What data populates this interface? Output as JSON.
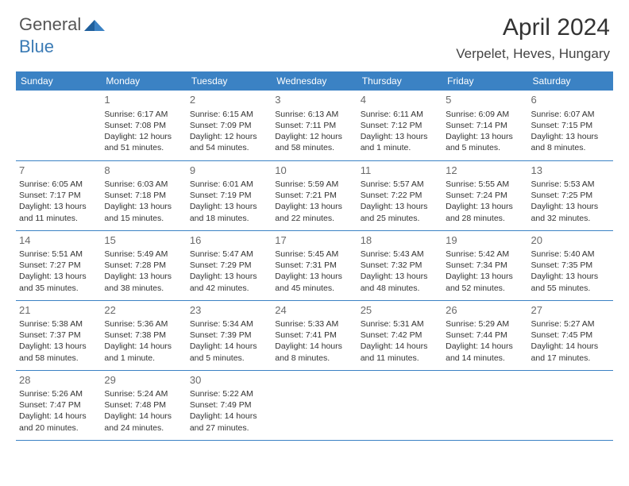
{
  "logo": {
    "word1": "General",
    "word2": "Blue"
  },
  "title": "April 2024",
  "location": "Verpelet, Heves, Hungary",
  "colors": {
    "header_bg": "#3b82c4",
    "header_text": "#ffffff",
    "cell_border": "#3b82c4",
    "daynum": "#6a6a6a",
    "body_text": "#333333",
    "logo_gray": "#555555",
    "logo_blue": "#3b7bb5"
  },
  "weekdays": [
    "Sunday",
    "Monday",
    "Tuesday",
    "Wednesday",
    "Thursday",
    "Friday",
    "Saturday"
  ],
  "rows": [
    [
      null,
      {
        "n": "1",
        "sr": "Sunrise: 6:17 AM",
        "ss": "Sunset: 7:08 PM",
        "dl": "Daylight: 12 hours and 51 minutes."
      },
      {
        "n": "2",
        "sr": "Sunrise: 6:15 AM",
        "ss": "Sunset: 7:09 PM",
        "dl": "Daylight: 12 hours and 54 minutes."
      },
      {
        "n": "3",
        "sr": "Sunrise: 6:13 AM",
        "ss": "Sunset: 7:11 PM",
        "dl": "Daylight: 12 hours and 58 minutes."
      },
      {
        "n": "4",
        "sr": "Sunrise: 6:11 AM",
        "ss": "Sunset: 7:12 PM",
        "dl": "Daylight: 13 hours and 1 minute."
      },
      {
        "n": "5",
        "sr": "Sunrise: 6:09 AM",
        "ss": "Sunset: 7:14 PM",
        "dl": "Daylight: 13 hours and 5 minutes."
      },
      {
        "n": "6",
        "sr": "Sunrise: 6:07 AM",
        "ss": "Sunset: 7:15 PM",
        "dl": "Daylight: 13 hours and 8 minutes."
      }
    ],
    [
      {
        "n": "7",
        "sr": "Sunrise: 6:05 AM",
        "ss": "Sunset: 7:17 PM",
        "dl": "Daylight: 13 hours and 11 minutes."
      },
      {
        "n": "8",
        "sr": "Sunrise: 6:03 AM",
        "ss": "Sunset: 7:18 PM",
        "dl": "Daylight: 13 hours and 15 minutes."
      },
      {
        "n": "9",
        "sr": "Sunrise: 6:01 AM",
        "ss": "Sunset: 7:19 PM",
        "dl": "Daylight: 13 hours and 18 minutes."
      },
      {
        "n": "10",
        "sr": "Sunrise: 5:59 AM",
        "ss": "Sunset: 7:21 PM",
        "dl": "Daylight: 13 hours and 22 minutes."
      },
      {
        "n": "11",
        "sr": "Sunrise: 5:57 AM",
        "ss": "Sunset: 7:22 PM",
        "dl": "Daylight: 13 hours and 25 minutes."
      },
      {
        "n": "12",
        "sr": "Sunrise: 5:55 AM",
        "ss": "Sunset: 7:24 PM",
        "dl": "Daylight: 13 hours and 28 minutes."
      },
      {
        "n": "13",
        "sr": "Sunrise: 5:53 AM",
        "ss": "Sunset: 7:25 PM",
        "dl": "Daylight: 13 hours and 32 minutes."
      }
    ],
    [
      {
        "n": "14",
        "sr": "Sunrise: 5:51 AM",
        "ss": "Sunset: 7:27 PM",
        "dl": "Daylight: 13 hours and 35 minutes."
      },
      {
        "n": "15",
        "sr": "Sunrise: 5:49 AM",
        "ss": "Sunset: 7:28 PM",
        "dl": "Daylight: 13 hours and 38 minutes."
      },
      {
        "n": "16",
        "sr": "Sunrise: 5:47 AM",
        "ss": "Sunset: 7:29 PM",
        "dl": "Daylight: 13 hours and 42 minutes."
      },
      {
        "n": "17",
        "sr": "Sunrise: 5:45 AM",
        "ss": "Sunset: 7:31 PM",
        "dl": "Daylight: 13 hours and 45 minutes."
      },
      {
        "n": "18",
        "sr": "Sunrise: 5:43 AM",
        "ss": "Sunset: 7:32 PM",
        "dl": "Daylight: 13 hours and 48 minutes."
      },
      {
        "n": "19",
        "sr": "Sunrise: 5:42 AM",
        "ss": "Sunset: 7:34 PM",
        "dl": "Daylight: 13 hours and 52 minutes."
      },
      {
        "n": "20",
        "sr": "Sunrise: 5:40 AM",
        "ss": "Sunset: 7:35 PM",
        "dl": "Daylight: 13 hours and 55 minutes."
      }
    ],
    [
      {
        "n": "21",
        "sr": "Sunrise: 5:38 AM",
        "ss": "Sunset: 7:37 PM",
        "dl": "Daylight: 13 hours and 58 minutes."
      },
      {
        "n": "22",
        "sr": "Sunrise: 5:36 AM",
        "ss": "Sunset: 7:38 PM",
        "dl": "Daylight: 14 hours and 1 minute."
      },
      {
        "n": "23",
        "sr": "Sunrise: 5:34 AM",
        "ss": "Sunset: 7:39 PM",
        "dl": "Daylight: 14 hours and 5 minutes."
      },
      {
        "n": "24",
        "sr": "Sunrise: 5:33 AM",
        "ss": "Sunset: 7:41 PM",
        "dl": "Daylight: 14 hours and 8 minutes."
      },
      {
        "n": "25",
        "sr": "Sunrise: 5:31 AM",
        "ss": "Sunset: 7:42 PM",
        "dl": "Daylight: 14 hours and 11 minutes."
      },
      {
        "n": "26",
        "sr": "Sunrise: 5:29 AM",
        "ss": "Sunset: 7:44 PM",
        "dl": "Daylight: 14 hours and 14 minutes."
      },
      {
        "n": "27",
        "sr": "Sunrise: 5:27 AM",
        "ss": "Sunset: 7:45 PM",
        "dl": "Daylight: 14 hours and 17 minutes."
      }
    ],
    [
      {
        "n": "28",
        "sr": "Sunrise: 5:26 AM",
        "ss": "Sunset: 7:47 PM",
        "dl": "Daylight: 14 hours and 20 minutes."
      },
      {
        "n": "29",
        "sr": "Sunrise: 5:24 AM",
        "ss": "Sunset: 7:48 PM",
        "dl": "Daylight: 14 hours and 24 minutes."
      },
      {
        "n": "30",
        "sr": "Sunrise: 5:22 AM",
        "ss": "Sunset: 7:49 PM",
        "dl": "Daylight: 14 hours and 27 minutes."
      },
      null,
      null,
      null,
      null
    ]
  ]
}
